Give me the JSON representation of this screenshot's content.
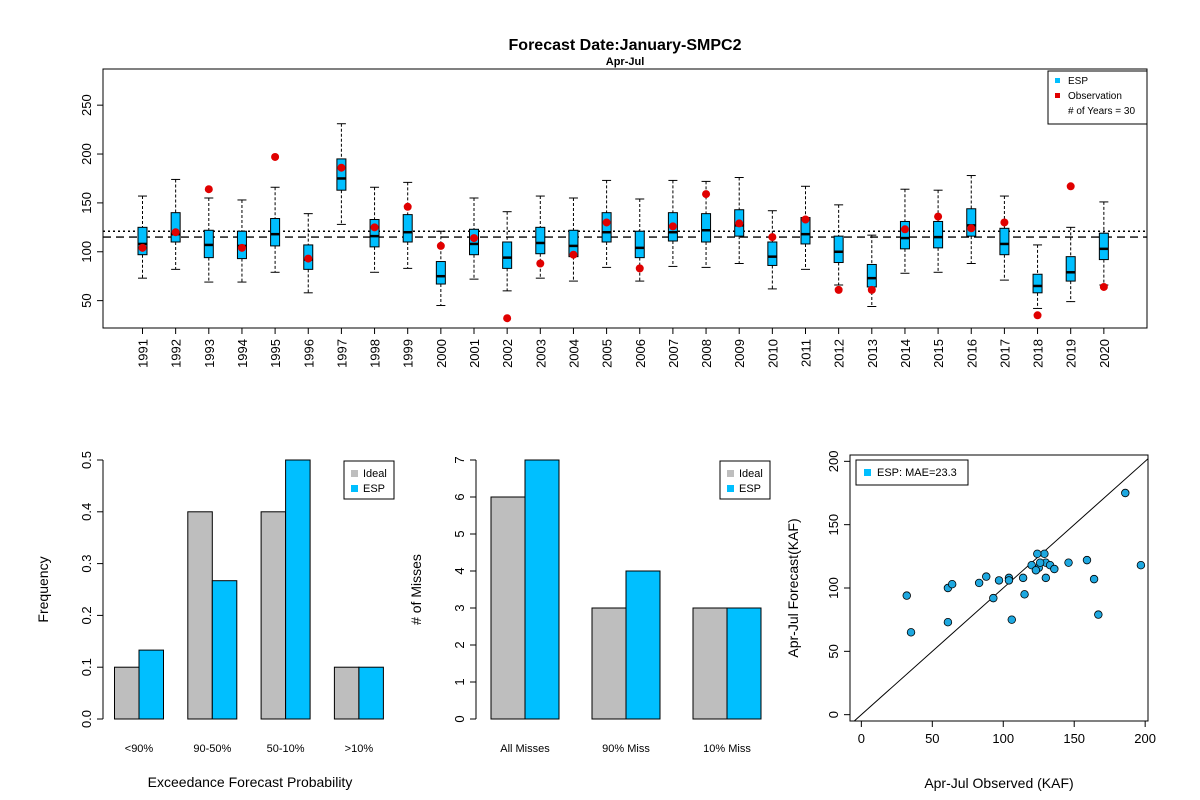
{
  "colors": {
    "esp": "#00BFFF",
    "observation": "#E00000",
    "ideal": "#BEBEBE",
    "point": "#1EA8E0"
  },
  "header": {
    "title": "Forecast Date:January-SMPC2",
    "subtitle": "Apr-Jul"
  },
  "chart_data": [
    {
      "type": "boxplot",
      "title": "Forecast Date:January-SMPC2",
      "subtitle": "Apr-Jul",
      "ylim": [
        22,
        287
      ],
      "yticks": [
        50,
        100,
        150,
        200,
        250
      ],
      "reference_lines": [
        {
          "style": "dotted",
          "value": 121
        },
        {
          "style": "dashed",
          "value": 115
        }
      ],
      "legend": {
        "position": "top-right",
        "entries": [
          "ESP",
          "Observation"
        ],
        "note": "# of Years = 30"
      },
      "years": [
        "1991",
        "1992",
        "1993",
        "1994",
        "1995",
        "1996",
        "1997",
        "1998",
        "1999",
        "2000",
        "2001",
        "2002",
        "2003",
        "2004",
        "2005",
        "2006",
        "2007",
        "2008",
        "2009",
        "2010",
        "2011",
        "2012",
        "2013",
        "2014",
        "2015",
        "2016",
        "2017",
        "2018",
        "2019",
        "2020"
      ],
      "boxes": [
        {
          "min": 73,
          "q1": 97,
          "median": 108,
          "q3": 125,
          "max": 157
        },
        {
          "min": 82,
          "q1": 110,
          "median": 118,
          "q3": 140,
          "max": 174
        },
        {
          "min": 69,
          "q1": 94,
          "median": 107,
          "q3": 122,
          "max": 155
        },
        {
          "min": 69,
          "q1": 93,
          "median": 106,
          "q3": 121,
          "max": 153
        },
        {
          "min": 79,
          "q1": 106,
          "median": 118,
          "q3": 134,
          "max": 166
        },
        {
          "min": 58,
          "q1": 82,
          "median": 92,
          "q3": 107,
          "max": 139
        },
        {
          "min": 128,
          "q1": 163,
          "median": 175,
          "q3": 195,
          "max": 231
        },
        {
          "min": 79,
          "q1": 105,
          "median": 116,
          "q3": 133,
          "max": 166
        },
        {
          "min": 83,
          "q1": 110,
          "median": 120,
          "q3": 138,
          "max": 171
        },
        {
          "min": 45,
          "q1": 67,
          "median": 75,
          "q3": 90,
          "max": 121
        },
        {
          "min": 72,
          "q1": 97,
          "median": 108,
          "q3": 123,
          "max": 155
        },
        {
          "min": 60,
          "q1": 83,
          "median": 94,
          "q3": 110,
          "max": 141
        },
        {
          "min": 73,
          "q1": 98,
          "median": 109,
          "q3": 125,
          "max": 157
        },
        {
          "min": 70,
          "q1": 95,
          "median": 106,
          "q3": 122,
          "max": 155
        },
        {
          "min": 84,
          "q1": 110,
          "median": 120,
          "q3": 140,
          "max": 173
        },
        {
          "min": 70,
          "q1": 94,
          "median": 104,
          "q3": 121,
          "max": 154
        },
        {
          "min": 85,
          "q1": 111,
          "median": 120,
          "q3": 140,
          "max": 173
        },
        {
          "min": 84,
          "q1": 110,
          "median": 122,
          "q3": 139,
          "max": 172
        },
        {
          "min": 88,
          "q1": 116,
          "median": 127,
          "q3": 143,
          "max": 176
        },
        {
          "min": 62,
          "q1": 86,
          "median": 95,
          "q3": 110,
          "max": 142
        },
        {
          "min": 82,
          "q1": 108,
          "median": 118,
          "q3": 135,
          "max": 167
        },
        {
          "min": 66,
          "q1": 89,
          "median": 100,
          "q3": 116,
          "max": 148
        },
        {
          "min": 44,
          "q1": 64,
          "median": 73,
          "q3": 87,
          "max": 117
        },
        {
          "min": 78,
          "q1": 103,
          "median": 114,
          "q3": 131,
          "max": 164
        },
        {
          "min": 79,
          "q1": 104,
          "median": 115,
          "q3": 131,
          "max": 163
        },
        {
          "min": 88,
          "q1": 116,
          "median": 127,
          "q3": 144,
          "max": 178
        },
        {
          "min": 71,
          "q1": 97,
          "median": 108,
          "q3": 124,
          "max": 157
        },
        {
          "min": 42,
          "q1": 58,
          "median": 65,
          "q3": 77,
          "max": 107
        },
        {
          "min": 49,
          "q1": 70,
          "median": 79,
          "q3": 95,
          "max": 125
        },
        {
          "min": 66,
          "q1": 92,
          "median": 103,
          "q3": 119,
          "max": 151
        }
      ],
      "observations": [
        104,
        120,
        164,
        104,
        197,
        93,
        186,
        125,
        146,
        106,
        114,
        32,
        88,
        97,
        130,
        83,
        126,
        159,
        129,
        115,
        133,
        61,
        61,
        123,
        136,
        124,
        130,
        35,
        167,
        64
      ]
    },
    {
      "type": "bar",
      "categories": [
        "<90%",
        "90-50%",
        "50-10%",
        ">10%"
      ],
      "series": [
        {
          "name": "Ideal",
          "values": [
            0.1,
            0.4,
            0.4,
            0.1
          ]
        },
        {
          "name": "ESP",
          "values": [
            0.133,
            0.267,
            0.5,
            0.1
          ]
        }
      ],
      "xlabel": "Exceedance Forecast Probability",
      "ylabel": "Frequency",
      "ylim": [
        0,
        0.5
      ],
      "yticks": [
        "0.0",
        "0.1",
        "0.2",
        "0.3",
        "0.4",
        "0.5"
      ],
      "legend": "top-right"
    },
    {
      "type": "bar",
      "categories": [
        "All Misses",
        "90% Miss",
        "10% Miss"
      ],
      "series": [
        {
          "name": "Ideal",
          "values": [
            6,
            3,
            3
          ]
        },
        {
          "name": "ESP",
          "values": [
            7,
            4,
            3
          ]
        }
      ],
      "xlabel": "",
      "ylabel": "# of Misses",
      "ylim": [
        0,
        7
      ],
      "yticks": [
        "0",
        "1",
        "2",
        "3",
        "4",
        "5",
        "6",
        "7"
      ],
      "legend": "top-right"
    },
    {
      "type": "scatter",
      "xlabel": "Apr-Jul Observed (KAF)",
      "ylabel": "Apr-Jul Forecast(KAF)",
      "xlim": [
        -8,
        202
      ],
      "ylim": [
        -5,
        205
      ],
      "xticks": [
        "0",
        "50",
        "100",
        "150",
        "200"
      ],
      "yticks": [
        "0",
        "50",
        "100",
        "150",
        "200"
      ],
      "legend": {
        "position": "top-left",
        "entries": [
          "ESP: MAE=23.3"
        ]
      },
      "points": [
        [
          104,
          108
        ],
        [
          120,
          118
        ],
        [
          164,
          107
        ],
        [
          104,
          106
        ],
        [
          197,
          118
        ],
        [
          93,
          92
        ],
        [
          186,
          175
        ],
        [
          125,
          116
        ],
        [
          146,
          120
        ],
        [
          106,
          75
        ],
        [
          114,
          108
        ],
        [
          32,
          94
        ],
        [
          88,
          109
        ],
        [
          97,
          106
        ],
        [
          130,
          120
        ],
        [
          83,
          104
        ],
        [
          126,
          120
        ],
        [
          159,
          122
        ],
        [
          129,
          127
        ],
        [
          115,
          95
        ],
        [
          133,
          118
        ],
        [
          61,
          100
        ],
        [
          61,
          73
        ],
        [
          123,
          114
        ],
        [
          136,
          115
        ],
        [
          124,
          127
        ],
        [
          130,
          108
        ],
        [
          35,
          65
        ],
        [
          167,
          79
        ],
        [
          64,
          103
        ]
      ]
    }
  ]
}
